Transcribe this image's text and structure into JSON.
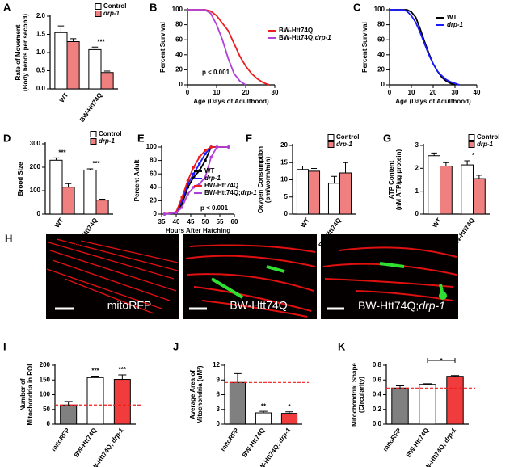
{
  "chart_data": [
    {
      "panel": "A",
      "type": "bar",
      "ylabel": [
        "Rate of Movement",
        "(Body bends per second)"
      ],
      "categories": [
        "WT",
        "BW-Htt74Q"
      ],
      "significance": [
        null,
        "***"
      ],
      "series": [
        {
          "name": "Control",
          "color": "#ffffff",
          "values": [
            1.55,
            1.08
          ],
          "errors": [
            0.18,
            0.07
          ]
        },
        {
          "name": "drp-1",
          "color": "#f08080",
          "values": [
            1.3,
            0.45
          ],
          "errors": [
            0.08,
            0.04
          ]
        }
      ],
      "ylim": [
        0,
        2
      ],
      "yticks": [
        {
          "value": 0,
          "label": "0.0"
        },
        {
          "value": 0.5,
          "label": "0.5"
        },
        {
          "value": 1,
          "label": "1.0"
        },
        {
          "value": 1.5,
          "label": "1.5"
        },
        {
          "value": 2,
          "label": "2.0"
        }
      ],
      "legend": "upper right"
    },
    {
      "panel": "B",
      "type": "line",
      "ylabel": [
        "Percent Survival"
      ],
      "xlabel": "Age (Days of Adulthood)",
      "annotation": "p < 0.001",
      "x": [
        0,
        2,
        4,
        6,
        8,
        10,
        12,
        14,
        16,
        18,
        20,
        22,
        24,
        26,
        28,
        30
      ],
      "series": [
        {
          "name": "BW-Htt74Q",
          "color": "#ee1c1c",
          "values": [
            100,
            100,
            100,
            100,
            98,
            92,
            82,
            72,
            55,
            38,
            25,
            15,
            8,
            3,
            0,
            null
          ]
        },
        {
          "name": "BW-Htt74Q;drp-1",
          "color": "#b040d8",
          "values": [
            100,
            100,
            100,
            100,
            95,
            80,
            60,
            35,
            15,
            5,
            0,
            null,
            null,
            null,
            null,
            null
          ]
        }
      ],
      "xlim": [
        0,
        30
      ],
      "xticks": [
        0,
        10,
        20,
        30
      ],
      "ylim": [
        0,
        100
      ],
      "yticks": [
        0,
        20,
        40,
        60,
        80,
        100
      ],
      "legend": "outside right"
    },
    {
      "panel": "C",
      "type": "line",
      "ylabel": [
        "Percent Survival"
      ],
      "xlabel": "Age (Days of Adulthood)",
      "x": [
        0,
        2,
        4,
        6,
        8,
        10,
        12,
        14,
        16,
        18,
        20,
        22,
        24,
        26,
        28,
        30,
        32
      ],
      "series": [
        {
          "name": "WT",
          "color": "#000000",
          "values": [
            100,
            100,
            100,
            100,
            100,
            97,
            90,
            75,
            58,
            42,
            28,
            18,
            10,
            5,
            2,
            0,
            null
          ]
        },
        {
          "name": "drp-1",
          "color": "#1a1aff",
          "values": [
            100,
            100,
            100,
            100,
            98,
            92,
            83,
            70,
            55,
            40,
            28,
            18,
            12,
            7,
            4,
            2,
            0
          ]
        }
      ],
      "xlim": [
        0,
        40
      ],
      "xticks": [
        0,
        10,
        20,
        30,
        40
      ],
      "ylim": [
        0,
        100
      ],
      "yticks": [
        0,
        20,
        40,
        60,
        80,
        100
      ],
      "legend": "upper right"
    },
    {
      "panel": "D",
      "type": "bar",
      "ylabel": [
        "Brood Size"
      ],
      "categories": [
        "WT",
        "BW-Htt74Q"
      ],
      "significance": [
        "***",
        "***"
      ],
      "series": [
        {
          "name": "Control",
          "color": "#ffffff",
          "values": [
            230,
            188
          ],
          "errors": [
            10,
            5
          ]
        },
        {
          "name": "drp-1",
          "color": "#f08080",
          "values": [
            115,
            60
          ],
          "errors": [
            15,
            4
          ]
        }
      ],
      "ylim": [
        0,
        300
      ],
      "yticks": [
        0,
        100,
        200,
        300
      ],
      "legend": "upper right"
    },
    {
      "panel": "E",
      "type": "line",
      "markers": true,
      "ylabel": [
        "Percent Adult"
      ],
      "xlabel": "Hours After Hatching",
      "annotation": "p < 0.001",
      "x": [
        36,
        40,
        42,
        44,
        46,
        48,
        50,
        52,
        54,
        58
      ],
      "series": [
        {
          "name": "WT",
          "color": "#000000",
          "values": [
            0,
            2,
            15,
            40,
            55,
            65,
            80,
            100,
            100,
            100
          ]
        },
        {
          "name": "drp-1",
          "color": "#1a1aff",
          "values": [
            0,
            2,
            20,
            45,
            60,
            75,
            90,
            100,
            100,
            100
          ]
        },
        {
          "name": "BW-Htt74Q",
          "color": "#ee1c1c",
          "values": [
            0,
            3,
            25,
            50,
            70,
            85,
            95,
            100,
            100,
            100
          ]
        },
        {
          "name": "BW-Htt74Q;drp-1",
          "color": "#b040d8",
          "values": [
            0,
            2,
            10,
            30,
            40,
            45,
            55,
            85,
            100,
            100
          ]
        }
      ],
      "xlim": [
        35,
        60
      ],
      "xticks": [
        35,
        40,
        45,
        50,
        55,
        60
      ],
      "ylim": [
        0,
        100
      ],
      "yticks": [
        0,
        20,
        40,
        60,
        80,
        100
      ],
      "legend": "lower right"
    },
    {
      "panel": "F",
      "type": "bar",
      "ylabel": [
        "Oxygen Consumption",
        "(pm/worm/min)"
      ],
      "categories": [
        "WT",
        "BW-Htt74Q"
      ],
      "significance": [
        null,
        null
      ],
      "series": [
        {
          "name": "Control",
          "color": "#ffffff",
          "values": [
            13,
            9
          ],
          "errors": [
            1,
            2
          ]
        },
        {
          "name": "drp-1",
          "color": "#f08080",
          "values": [
            12.5,
            12
          ],
          "errors": [
            0.8,
            3
          ]
        }
      ],
      "ylim": [
        0,
        20
      ],
      "yticks": [
        0,
        5,
        10,
        15,
        20
      ],
      "legend": "upper right"
    },
    {
      "panel": "G",
      "type": "bar",
      "ylabel": [
        "ATP Content",
        "(nM ATP/µg protein)"
      ],
      "categories": [
        "WT",
        "BW-Htt74Q"
      ],
      "significance": [
        null,
        "*"
      ],
      "series": [
        {
          "name": "Control",
          "color": "#ffffff",
          "values": [
            2.55,
            2.15
          ],
          "errors": [
            0.12,
            0.18
          ]
        },
        {
          "name": "drp-1",
          "color": "#f08080",
          "values": [
            2.1,
            1.55
          ],
          "errors": [
            0.15,
            0.15
          ]
        }
      ],
      "ylim": [
        0,
        3
      ],
      "yticks": [
        0,
        1,
        2,
        3
      ],
      "legend": "upper right"
    },
    {
      "panel": "I",
      "type": "bar",
      "ylabel": [
        "Number of",
        "Mitochondria in ROI"
      ],
      "categories": [
        "mitoRFP",
        "BW-Htt74Q",
        "BW-Htt74Q; drp-1"
      ],
      "significance": [
        null,
        "***",
        "***"
      ],
      "values": [
        65,
        158,
        152
      ],
      "errors": [
        12,
        5,
        15
      ],
      "colors": [
        "#808080",
        "#ffffff",
        "#f03c3c"
      ],
      "reference_line": 65,
      "ylim": [
        0,
        200
      ],
      "yticks": [
        0,
        50,
        100,
        150,
        200
      ]
    },
    {
      "panel": "J",
      "type": "bar",
      "ylabel": [
        "Average Area of",
        "Mitochondria (uM²)"
      ],
      "categories": [
        "mitoRFP",
        "BW-Htt74Q",
        "BW-Htt74Q; drp-1"
      ],
      "significance": [
        null,
        "**",
        "*"
      ],
      "values": [
        8.5,
        2.3,
        2.2
      ],
      "errors": [
        1.8,
        0.3,
        0.3
      ],
      "colors": [
        "#808080",
        "#ffffff",
        "#f03c3c"
      ],
      "reference_line": 8.5,
      "ylim": [
        0,
        12
      ],
      "yticks": [
        0,
        3,
        6,
        9,
        12
      ]
    },
    {
      "panel": "K",
      "type": "bar",
      "ylabel": [
        "Mitochondrial Shape",
        "(Circularity)"
      ],
      "categories": [
        "mitoRFP",
        "BW-Htt74Q",
        "BW-Htt74Q; drp-1"
      ],
      "bracket_label": "*",
      "values": [
        0.49,
        0.54,
        0.65
      ],
      "errors": [
        0.03,
        0.01,
        0.01
      ],
      "colors": [
        "#808080",
        "#ffffff",
        "#f03c3c"
      ],
      "reference_line": 0.49,
      "ylim": [
        0,
        0.8
      ],
      "yticks": [
        {
          "value": 0,
          "label": "0.0"
        },
        {
          "value": 0.2,
          "label": "0.2"
        },
        {
          "value": 0.4,
          "label": "0.4"
        },
        {
          "value": 0.6,
          "label": "0.6"
        },
        {
          "value": 0.8,
          "label": "0.8"
        }
      ]
    }
  ],
  "panel_h": {
    "panel": "H",
    "images": [
      {
        "label": "mitoRFP"
      },
      {
        "label": "BW-Htt74Q"
      },
      {
        "label": "BW-Htt74Q;drp-1"
      }
    ]
  }
}
